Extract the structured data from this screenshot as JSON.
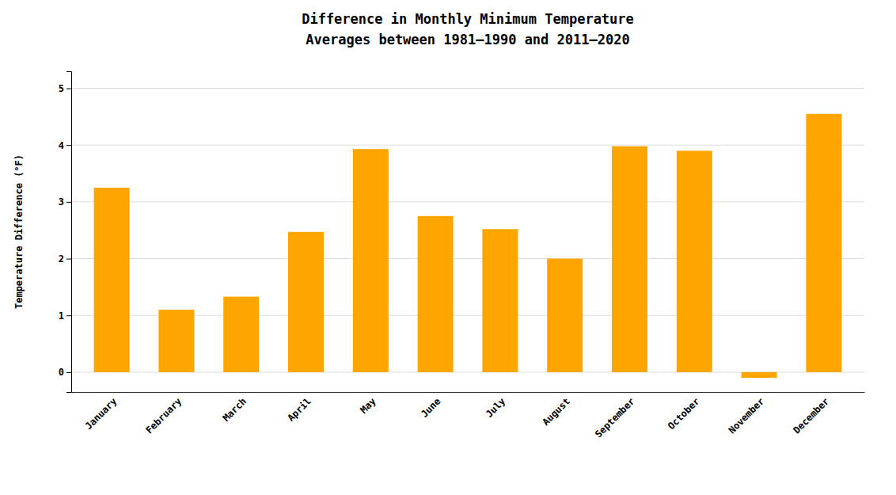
{
  "chart_data": {
    "type": "bar",
    "title": "Difference in Monthly Minimum Temperature\nAverages between 1981–1990 and 2011–2020",
    "ylabel": "Temperature Difference (°F)",
    "categories": [
      "January",
      "February",
      "March",
      "April",
      "May",
      "June",
      "July",
      "August",
      "September",
      "October",
      "November",
      "December"
    ],
    "values": [
      3.25,
      1.1,
      1.33,
      2.47,
      3.93,
      2.75,
      2.52,
      2.0,
      3.98,
      3.9,
      -0.1,
      4.55
    ],
    "color": "#FFA500",
    "ylim": [
      -0.35,
      5.3
    ],
    "yticks": [
      0,
      1,
      2,
      3,
      4,
      5
    ],
    "grid": true
  }
}
